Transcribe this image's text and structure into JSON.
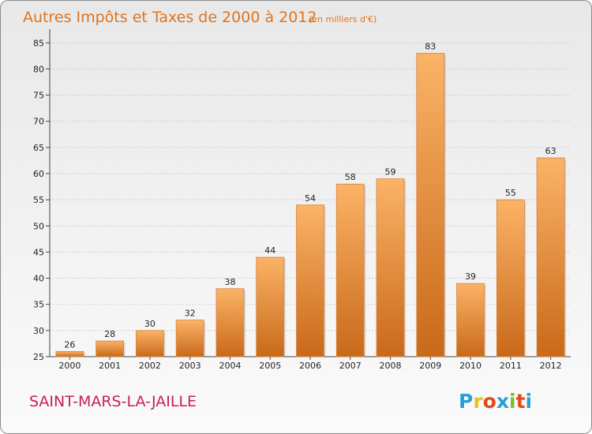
{
  "title": "Autres Impôts et Taxes de 2000 à 2012",
  "title_unit": "(en milliers d'€)",
  "commune": "SAINT-MARS-LA-JAILLE",
  "logo": {
    "letters": [
      "P",
      "r",
      "o",
      "x",
      "i",
      "t",
      "i"
    ],
    "colors": [
      "#2a9fd6",
      "#e8c31a",
      "#e24a1c",
      "#2a9fd6",
      "#7cbc2e",
      "#e24a1c",
      "#2a9fd6"
    ]
  },
  "colors": {
    "bar_light": "#fbb366",
    "bar_dark": "#c9691a",
    "title": "#e0731c",
    "commune": "#c81e5a"
  },
  "chart_data": {
    "type": "bar",
    "categories": [
      "2000",
      "2001",
      "2002",
      "2003",
      "2004",
      "2005",
      "2006",
      "2007",
      "2008",
      "2009",
      "2010",
      "2011",
      "2012"
    ],
    "values": [
      26,
      28,
      30,
      32,
      38,
      44,
      54,
      58,
      59,
      83,
      39,
      55,
      63
    ],
    "value_labels": [
      "26",
      "28",
      "30",
      "32",
      "38",
      "44",
      "54",
      "58",
      "59",
      "83",
      "39",
      "55",
      "63"
    ],
    "title": "Autres Impôts et Taxes de 2000 à 2012",
    "ylim": [
      25,
      87
    ],
    "yticks": [
      25,
      30,
      35,
      40,
      45,
      50,
      55,
      60,
      65,
      70,
      75,
      80,
      85
    ],
    "ytick_labels": [
      "25",
      "30",
      "35",
      "40",
      "45",
      "50",
      "55",
      "60",
      "65",
      "70",
      "75",
      "80",
      "85"
    ],
    "grid": true
  }
}
